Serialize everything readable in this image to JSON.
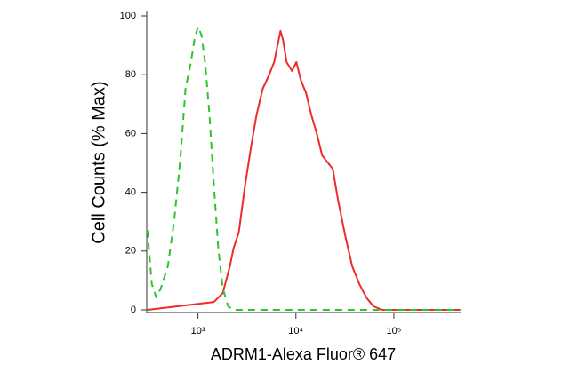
{
  "chart_data": {
    "type": "line",
    "xlabel": "ADRM1-Alexa Fluor® 647",
    "ylabel": "Cell Counts (% Max)",
    "xscale": "log",
    "xlim": [
      300,
      480000
    ],
    "ylim": [
      0,
      100
    ],
    "xticks": [
      {
        "value": 1000,
        "label": "10³"
      },
      {
        "value": 10000,
        "label": "10⁴"
      },
      {
        "value": 100000,
        "label": "10⁵"
      }
    ],
    "yticks": [
      0,
      20,
      40,
      60,
      80,
      100
    ],
    "series": [
      {
        "color": "#ee2b2b",
        "dash": false,
        "x": [
          305,
          1456,
          1791,
          2117,
          2301,
          2608,
          3017,
          3491,
          3955,
          4577,
          5297,
          5998,
          6518,
          6950,
          7394,
          8035,
          9100,
          10100,
          11220,
          12710,
          14400,
          16330,
          18500,
          20950,
          23750,
          26900,
          31780,
          37550,
          44370,
          52400,
          61900,
          76200,
          480000
        ],
        "values": [
          0,
          2.7,
          5.7,
          14.8,
          20.8,
          26.3,
          42.0,
          55.6,
          66.2,
          75.2,
          79.8,
          84.3,
          90.3,
          94.9,
          91.8,
          84.3,
          81.3,
          84.3,
          78.2,
          73.7,
          66.2,
          60.1,
          52.6,
          50.2,
          48.0,
          37.5,
          25.4,
          14.8,
          8.8,
          4.2,
          1.2,
          0,
          0
        ]
      },
      {
        "color": "#2dc52d",
        "dash": true,
        "x": [
          305,
          338,
          376,
          417,
          492,
          570,
          659,
          747,
          847,
          920,
          1000,
          1087,
          1181,
          1311,
          1456,
          1615,
          1791,
          2029,
          2301,
          480000
        ],
        "values": [
          27,
          8.8,
          4.2,
          7.3,
          14.8,
          29.9,
          51,
          75.2,
          84.3,
          91.8,
          96.4,
          93.4,
          84.3,
          66.2,
          42,
          20.8,
          7.3,
          1.2,
          0,
          0
        ]
      }
    ]
  }
}
